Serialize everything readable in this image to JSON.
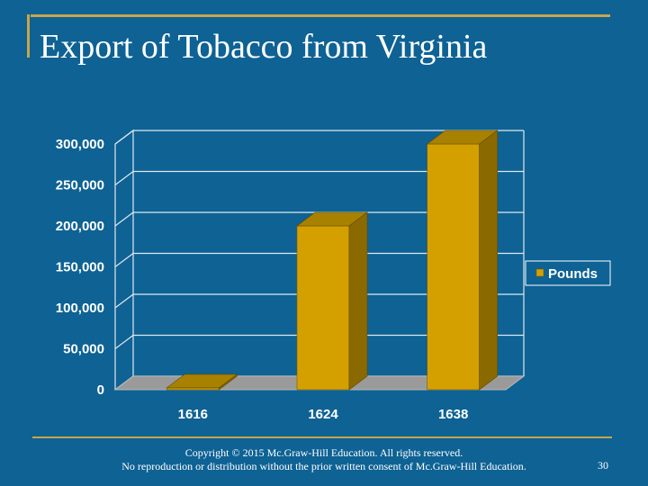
{
  "slide": {
    "title": "Export of Tobacco from Virginia",
    "copyright_line1": "Copyright © 2015 Mc.Graw-Hill Education. All rights reserved.",
    "copyright_line2": "No reproduction or distribution without the prior written consent of Mc.Graw-Hill Education.",
    "page_number": "30"
  },
  "colors": {
    "background": "#0e6294",
    "accent_rule": "#c8a64a",
    "bar_front": "#d4a000",
    "bar_side": "#8a6a00",
    "bar_top": "#a98100",
    "floor": "#9a9a9a",
    "gridline": "#dfe8ef"
  },
  "chart_data": {
    "type": "bar",
    "title": "",
    "xlabel": "",
    "ylabel": "",
    "categories": [
      "1616",
      "1624",
      "1638"
    ],
    "series": [
      {
        "name": "Pounds",
        "values": [
          2300,
          200000,
          300000
        ]
      }
    ],
    "ylim": [
      0,
      300000
    ],
    "yticks": [
      0,
      50000,
      100000,
      150000,
      200000,
      250000,
      300000
    ],
    "ytick_labels": [
      "0",
      "50,000",
      "100,000",
      "150,000",
      "200,000",
      "250,000",
      "300,000"
    ],
    "grid": true,
    "legend": "right",
    "style": "3d"
  }
}
